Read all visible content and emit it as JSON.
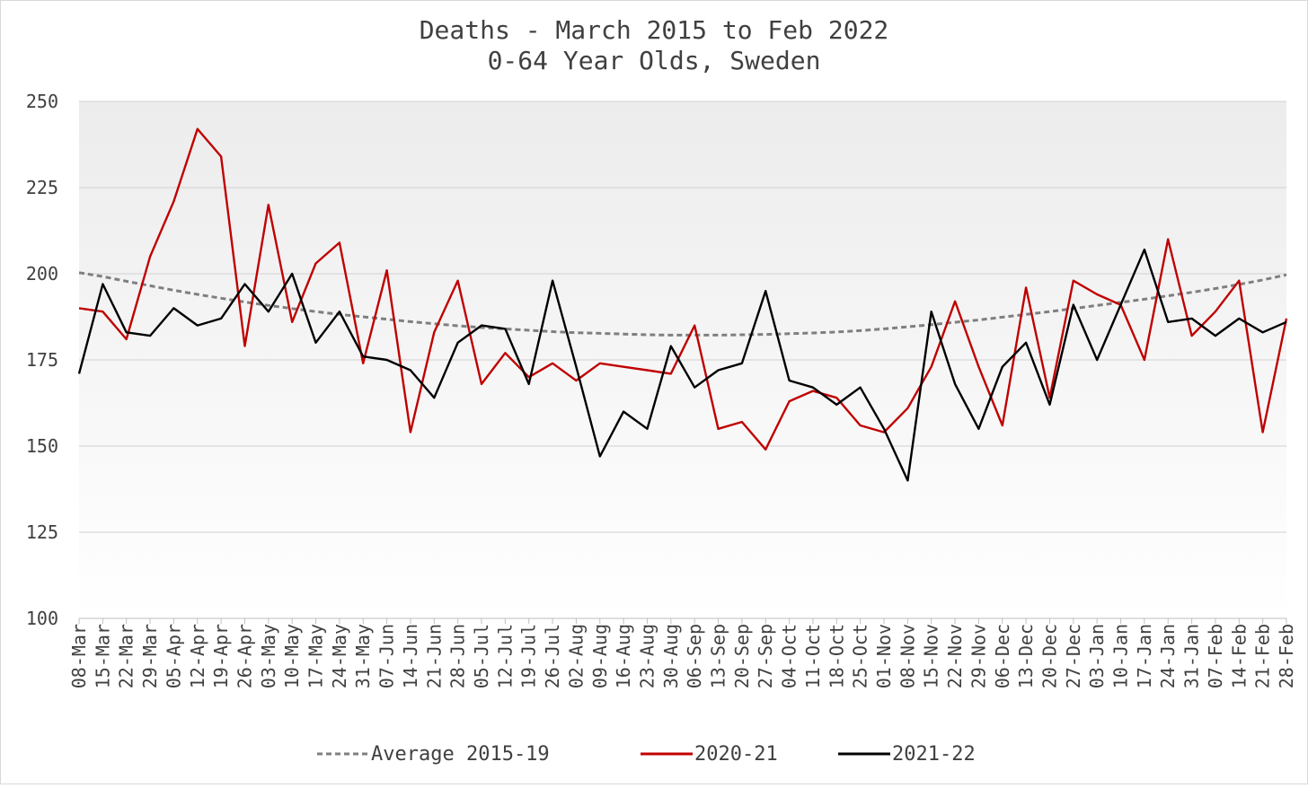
{
  "chart_data": {
    "type": "line",
    "title_line1": "Deaths - March 2015 to Feb 2022",
    "title_line2": "0-64 Year Olds, Sweden",
    "ylim": [
      100,
      250
    ],
    "yticks": [
      "100",
      "125",
      "150",
      "175",
      "200",
      "225",
      "250"
    ],
    "grid": true,
    "legend_position": "bottom",
    "categories": [
      "08-Mar",
      "15-Mar",
      "22-Mar",
      "29-Mar",
      "05-Apr",
      "12-Apr",
      "19-Apr",
      "26-Apr",
      "03-May",
      "10-May",
      "17-May",
      "24-May",
      "31-May",
      "07-Jun",
      "14-Jun",
      "21-Jun",
      "28-Jun",
      "05-Jul",
      "12-Jul",
      "19-Jul",
      "26-Jul",
      "02-Aug",
      "09-Aug",
      "16-Aug",
      "23-Aug",
      "30-Aug",
      "06-Sep",
      "13-Sep",
      "20-Sep",
      "27-Sep",
      "04-Oct",
      "11-Oct",
      "18-Oct",
      "25-Oct",
      "01-Nov",
      "08-Nov",
      "15-Nov",
      "22-Nov",
      "29-Nov",
      "06-Dec",
      "13-Dec",
      "20-Dec",
      "27-Dec",
      "03-Jan",
      "10-Jan",
      "17-Jan",
      "24-Jan",
      "31-Jan",
      "07-Feb",
      "14-Feb",
      "21-Feb",
      "28-Feb"
    ],
    "series": [
      {
        "name": "Average 2015-19",
        "color": "#7f7f7f",
        "dashed": true,
        "values": [
          200.3,
          199.2,
          197.8,
          196.5,
          195.2,
          194.0,
          192.9,
          191.8,
          190.8,
          189.9,
          189.0,
          188.2,
          187.5,
          186.8,
          186.1,
          185.5,
          184.9,
          184.4,
          184.0,
          183.6,
          183.2,
          182.9,
          182.7,
          182.5,
          182.3,
          182.2,
          182.2,
          182.2,
          182.3,
          182.4,
          182.6,
          182.8,
          183.1,
          183.5,
          184.0,
          184.6,
          185.2,
          185.9,
          186.6,
          187.4,
          188.2,
          189.0,
          189.9,
          190.8,
          191.7,
          192.6,
          193.6,
          194.6,
          195.7,
          196.9,
          198.2,
          199.7
        ]
      },
      {
        "name": "2020-21",
        "color": "#c00000",
        "dashed": false,
        "values": [
          190,
          189,
          181,
          205,
          221,
          242,
          234,
          179,
          220,
          186,
          203,
          209,
          174,
          201,
          154,
          183,
          198,
          168,
          177,
          170,
          174,
          169,
          174,
          173,
          172,
          171,
          185,
          155,
          157,
          149,
          163,
          166,
          164,
          156,
          154,
          161,
          173,
          192,
          173,
          156,
          196,
          164,
          198,
          194,
          191,
          175,
          210,
          182,
          189,
          198,
          154,
          187
        ]
      },
      {
        "name": "2021-22",
        "color": "#000000",
        "dashed": false,
        "values": [
          171,
          197,
          183,
          182,
          190,
          185,
          187,
          197,
          189,
          200,
          180,
          189,
          176,
          175,
          172,
          164,
          180,
          185,
          184,
          168,
          198,
          173,
          147,
          160,
          155,
          179,
          167,
          172,
          174,
          195,
          169,
          167,
          162,
          167,
          155,
          140,
          189,
          168,
          155,
          173,
          180,
          162,
          191,
          175,
          191,
          207,
          186,
          187,
          182,
          187,
          183,
          186
        ]
      }
    ]
  }
}
